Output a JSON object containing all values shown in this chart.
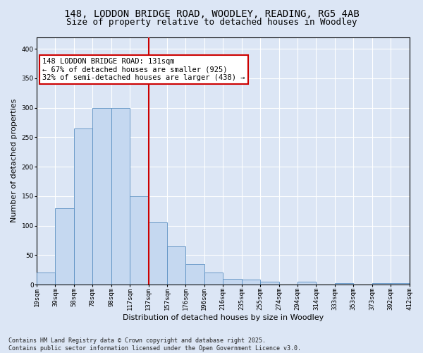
{
  "title_line1": "148, LODDON BRIDGE ROAD, WOODLEY, READING, RG5 4AB",
  "title_line2": "Size of property relative to detached houses in Woodley",
  "xlabel": "Distribution of detached houses by size in Woodley",
  "ylabel": "Number of detached properties",
  "bins": [
    "19sqm",
    "39sqm",
    "58sqm",
    "78sqm",
    "98sqm",
    "117sqm",
    "137sqm",
    "157sqm",
    "176sqm",
    "196sqm",
    "216sqm",
    "235sqm",
    "255sqm",
    "274sqm",
    "294sqm",
    "314sqm",
    "333sqm",
    "353sqm",
    "373sqm",
    "392sqm",
    "412sqm"
  ],
  "values": [
    20,
    130,
    265,
    300,
    300,
    150,
    105,
    65,
    35,
    20,
    10,
    8,
    5,
    0,
    5,
    0,
    3,
    0,
    3,
    2
  ],
  "bar_color": "#c5d8f0",
  "bar_edge_color": "#5a8fc2",
  "vline_x_index": 6,
  "vline_color": "#cc0000",
  "annotation_text": "148 LODDON BRIDGE ROAD: 131sqm\n← 67% of detached houses are smaller (925)\n32% of semi-detached houses are larger (438) →",
  "annotation_box_color": "#ffffff",
  "annotation_box_edge": "#cc0000",
  "ylim": [
    0,
    420
  ],
  "yticks": [
    0,
    50,
    100,
    150,
    200,
    250,
    300,
    350,
    400
  ],
  "background_color": "#dce6f5",
  "plot_bg_color": "#dce6f5",
  "footer_text": "Contains HM Land Registry data © Crown copyright and database right 2025.\nContains public sector information licensed under the Open Government Licence v3.0.",
  "title_fontsize": 10,
  "subtitle_fontsize": 9,
  "axis_label_fontsize": 8,
  "tick_fontsize": 6.5,
  "annotation_fontsize": 7.5,
  "footer_fontsize": 6
}
